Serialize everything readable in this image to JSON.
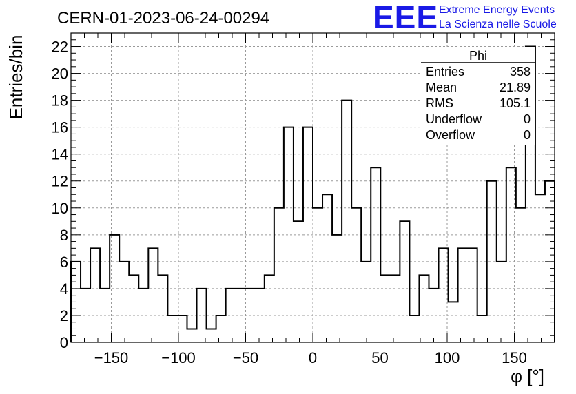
{
  "title": "CERN-01-2023-06-24-00294",
  "logo": {
    "mark": "EEE",
    "line1": "Extreme Energy Events",
    "line2": "La Scienza nelle Scuole",
    "color": "#1a1ae6"
  },
  "stats": {
    "name": "Phi",
    "rows": [
      {
        "label": "Entries",
        "value": "358"
      },
      {
        "label": "Mean",
        "value": "21.89"
      },
      {
        "label": "RMS",
        "value": "105.1"
      },
      {
        "label": "Underflow",
        "value": "0"
      },
      {
        "label": "Overflow",
        "value": "0"
      }
    ]
  },
  "chart_data": {
    "type": "bar",
    "histogram": true,
    "xlabel": "φ [°]",
    "ylabel": "Entries/bin",
    "xlim": [
      -180,
      180
    ],
    "ylim": [
      0,
      23
    ],
    "xticks": [
      -150,
      -100,
      -50,
      0,
      50,
      100,
      150
    ],
    "xtick_labels": [
      "−150",
      "−100",
      "−50",
      "0",
      "50",
      "100",
      "150"
    ],
    "yticks": [
      0,
      2,
      4,
      6,
      8,
      10,
      12,
      14,
      16,
      18,
      20,
      22
    ],
    "grid": true,
    "bin_width": 7.2,
    "values": [
      6,
      4,
      7,
      4,
      8,
      6,
      5,
      4,
      7,
      5,
      2,
      2,
      1,
      4,
      1,
      2,
      4,
      4,
      4,
      4,
      5,
      10,
      16,
      9,
      16,
      10,
      11,
      8,
      18,
      10,
      6,
      13,
      5,
      5,
      9,
      2,
      5,
      4,
      7,
      3,
      7,
      7,
      2,
      12,
      6,
      13,
      10,
      22,
      11,
      12
    ]
  }
}
